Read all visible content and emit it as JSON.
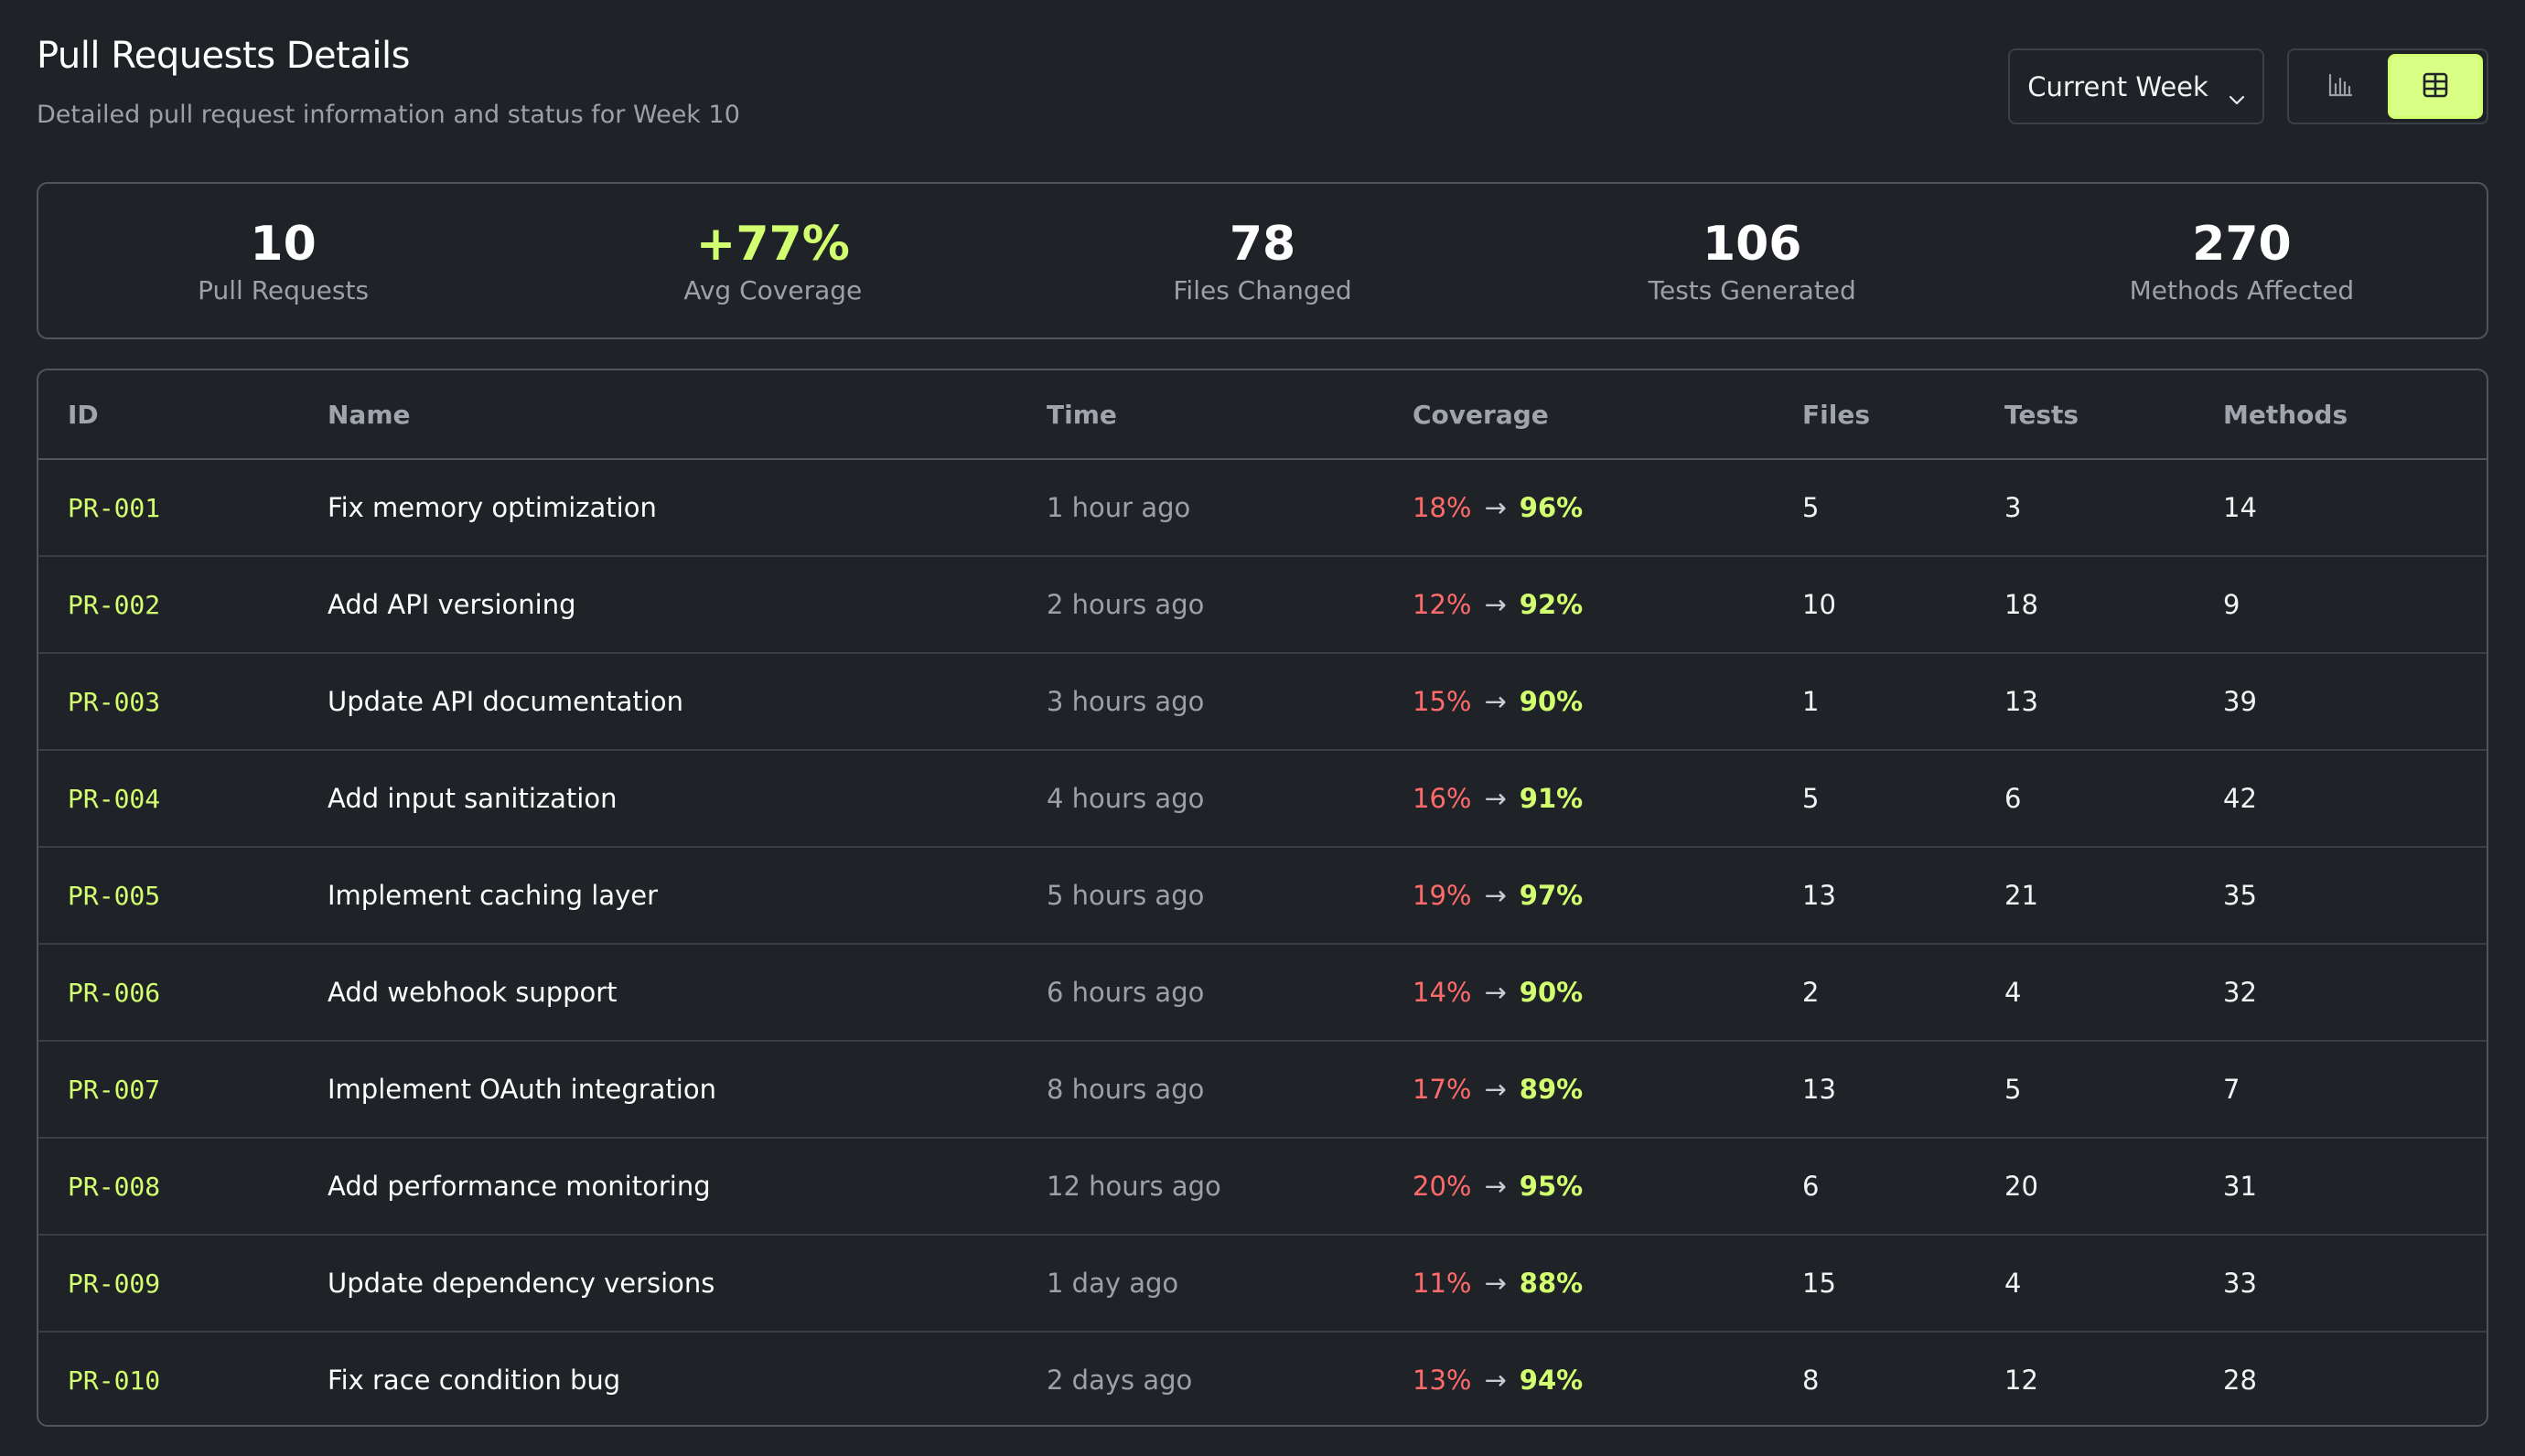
{
  "header": {
    "title": "Pull Requests Details",
    "subtitle": "Detailed pull request information and status for Week 10",
    "week_selector": "Current Week"
  },
  "view_toggle": {
    "options": [
      "chart-icon",
      "table-icon"
    ],
    "active": "table-icon"
  },
  "colors": {
    "accent": "#d2ff6f",
    "coverage_before": "#ff6b6b",
    "background": "#1f2227"
  },
  "stats": [
    {
      "value": "10",
      "label": "Pull Requests"
    },
    {
      "value": "+77%",
      "label": "Avg Coverage"
    },
    {
      "value": "78",
      "label": "Files Changed"
    },
    {
      "value": "106",
      "label": "Tests Generated"
    },
    {
      "value": "270",
      "label": "Methods Affected"
    }
  ],
  "table": {
    "columns": [
      "ID",
      "Name",
      "Time",
      "Coverage",
      "Files",
      "Tests",
      "Methods"
    ],
    "rows": [
      {
        "id": "PR-001",
        "name": "Fix memory optimization",
        "time": "1 hour ago",
        "cov_from": "18%",
        "cov_to": "96%",
        "files": "5",
        "tests": "3",
        "methods": "14"
      },
      {
        "id": "PR-002",
        "name": "Add API versioning",
        "time": "2 hours ago",
        "cov_from": "12%",
        "cov_to": "92%",
        "files": "10",
        "tests": "18",
        "methods": "9"
      },
      {
        "id": "PR-003",
        "name": "Update API documentation",
        "time": "3 hours ago",
        "cov_from": "15%",
        "cov_to": "90%",
        "files": "1",
        "tests": "13",
        "methods": "39"
      },
      {
        "id": "PR-004",
        "name": "Add input sanitization",
        "time": "4 hours ago",
        "cov_from": "16%",
        "cov_to": "91%",
        "files": "5",
        "tests": "6",
        "methods": "42"
      },
      {
        "id": "PR-005",
        "name": "Implement caching layer",
        "time": "5 hours ago",
        "cov_from": "19%",
        "cov_to": "97%",
        "files": "13",
        "tests": "21",
        "methods": "35"
      },
      {
        "id": "PR-006",
        "name": "Add webhook support",
        "time": "6 hours ago",
        "cov_from": "14%",
        "cov_to": "90%",
        "files": "2",
        "tests": "4",
        "methods": "32"
      },
      {
        "id": "PR-007",
        "name": "Implement OAuth integration",
        "time": "8 hours ago",
        "cov_from": "17%",
        "cov_to": "89%",
        "files": "13",
        "tests": "5",
        "methods": "7"
      },
      {
        "id": "PR-008",
        "name": "Add performance monitoring",
        "time": "12 hours ago",
        "cov_from": "20%",
        "cov_to": "95%",
        "files": "6",
        "tests": "20",
        "methods": "31"
      },
      {
        "id": "PR-009",
        "name": "Update dependency versions",
        "time": "1 day ago",
        "cov_from": "11%",
        "cov_to": "88%",
        "files": "15",
        "tests": "4",
        "methods": "33"
      },
      {
        "id": "PR-010",
        "name": "Fix race condition bug",
        "time": "2 days ago",
        "cov_from": "13%",
        "cov_to": "94%",
        "files": "8",
        "tests": "12",
        "methods": "28"
      }
    ]
  }
}
